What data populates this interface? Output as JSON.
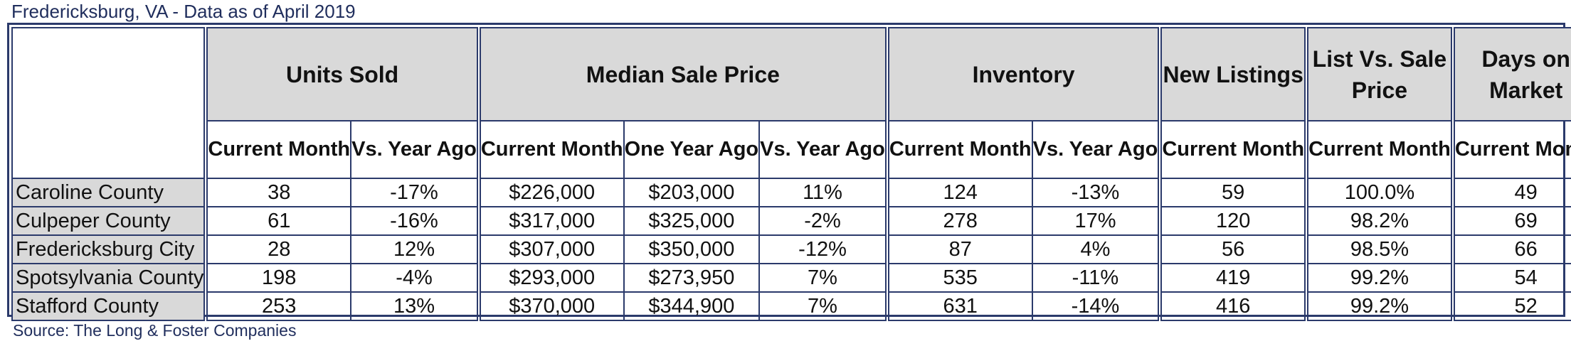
{
  "title": "Fredericksburg, VA - Data as of April 2019",
  "groups": {
    "units_sold": "Units Sold",
    "median_sale_price": "Median Sale Price",
    "inventory": "Inventory",
    "new_listings": "New Listings",
    "list_vs_sale": "List Vs. Sale Price",
    "days_on_market": "Days on Market"
  },
  "subheaders": {
    "current_month": "Current Month",
    "vs_year_ago": "Vs. Year Ago",
    "one_year_ago": "One Year Ago"
  },
  "rows": [
    {
      "name": "Caroline County",
      "units_current": "38",
      "units_vs": "-17%",
      "price_current": "$226,000",
      "price_year_ago": "$203,000",
      "price_vs": "11%",
      "inv_current": "124",
      "inv_vs": "-13%",
      "new_listings": "59",
      "list_vs_sale": "100.0%",
      "dom": "49"
    },
    {
      "name": "Culpeper County",
      "units_current": "61",
      "units_vs": "-16%",
      "price_current": "$317,000",
      "price_year_ago": "$325,000",
      "price_vs": "-2%",
      "inv_current": "278",
      "inv_vs": "17%",
      "new_listings": "120",
      "list_vs_sale": "98.2%",
      "dom": "69"
    },
    {
      "name": "Fredericksburg City",
      "units_current": "28",
      "units_vs": "12%",
      "price_current": "$307,000",
      "price_year_ago": "$350,000",
      "price_vs": "-12%",
      "inv_current": "87",
      "inv_vs": "4%",
      "new_listings": "56",
      "list_vs_sale": "98.5%",
      "dom": "66"
    },
    {
      "name": "Spotsylvania County",
      "units_current": "198",
      "units_vs": "-4%",
      "price_current": "$293,000",
      "price_year_ago": "$273,950",
      "price_vs": "7%",
      "inv_current": "535",
      "inv_vs": "-11%",
      "new_listings": "419",
      "list_vs_sale": "99.2%",
      "dom": "54"
    },
    {
      "name": "Stafford County",
      "units_current": "253",
      "units_vs": "13%",
      "price_current": "$370,000",
      "price_year_ago": "$344,900",
      "price_vs": "7%",
      "inv_current": "631",
      "inv_vs": "-14%",
      "new_listings": "416",
      "list_vs_sale": "99.2%",
      "dom": "52"
    }
  ],
  "source": "Source: The Long & Foster Companies",
  "colors": {
    "border": "#2b3a6b",
    "header_fill": "#d9d9d9",
    "title_text": "#1f2d5c"
  }
}
